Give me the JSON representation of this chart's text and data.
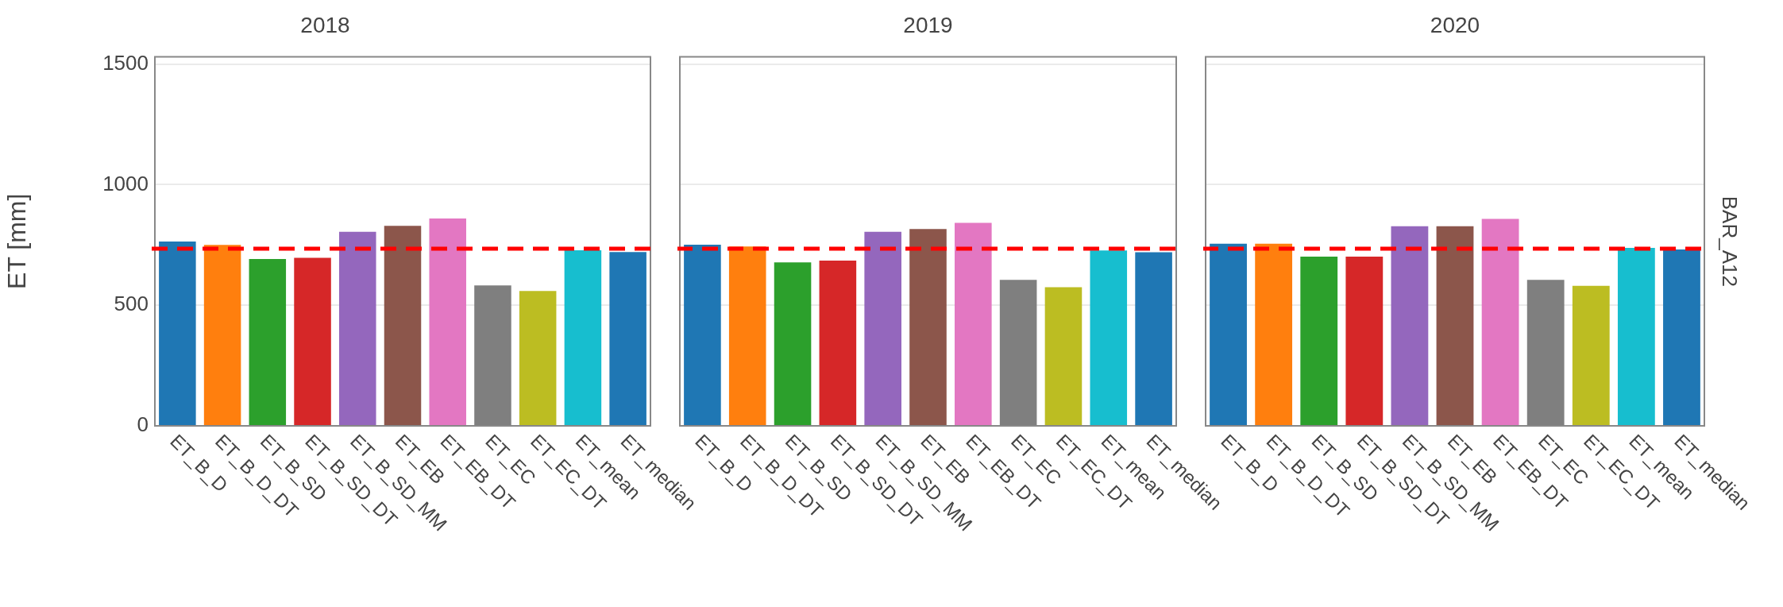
{
  "chart_data": [
    {
      "type": "bar",
      "title": "2018",
      "ylabel": "ET [mm]",
      "categories": [
        "ET_B_D",
        "ET_B_D_DT",
        "ET_B_SD",
        "ET_B_SD_DT",
        "ET_B_SD_MM",
        "ET_EB",
        "ET_EB_DT",
        "ET_EC",
        "ET_EC_DT",
        "ET_mean",
        "ET_median"
      ],
      "values": [
        764,
        750,
        692,
        697,
        805,
        829,
        860,
        582,
        559,
        728,
        721
      ],
      "colors": [
        "#1f77b4",
        "#ff7f0e",
        "#2ca02c",
        "#d62728",
        "#9467bd",
        "#8c564b",
        "#e377c2",
        "#7f7f7f",
        "#bcbd22",
        "#17becf",
        "#1f77b4"
      ],
      "ylim": [
        0,
        1530
      ],
      "yticks": [
        0,
        500,
        1000,
        1500
      ],
      "grid": "y",
      "legend": false,
      "ref_lines": [
        {
          "axis": "y",
          "value": 735,
          "color": "#ff0000",
          "line_style": "dashed"
        }
      ]
    },
    {
      "type": "bar",
      "title": "2019",
      "categories": [
        "ET_B_D",
        "ET_B_D_DT",
        "ET_B_SD",
        "ET_B_SD_DT",
        "ET_B_SD_MM",
        "ET_EB",
        "ET_EB_DT",
        "ET_EC",
        "ET_EC_DT",
        "ET_mean",
        "ET_median"
      ],
      "values": [
        751,
        744,
        678,
        685,
        805,
        816,
        842,
        605,
        575,
        727,
        720
      ],
      "colors": [
        "#1f77b4",
        "#ff7f0e",
        "#2ca02c",
        "#d62728",
        "#9467bd",
        "#8c564b",
        "#e377c2",
        "#7f7f7f",
        "#bcbd22",
        "#17becf",
        "#1f77b4"
      ],
      "ylim": [
        0,
        1530
      ],
      "yticks": [
        0,
        500,
        1000,
        1500
      ],
      "grid": "y",
      "legend": false,
      "tick_labels": "x",
      "ref_lines": [
        {
          "axis": "y",
          "value": 735,
          "color": "#ff0000",
          "line_style": "dashed"
        }
      ]
    },
    {
      "type": "bar",
      "title": "2020",
      "categories": [
        "ET_B_D",
        "ET_B_D_DT",
        "ET_B_SD",
        "ET_B_SD_DT",
        "ET_B_SD_MM",
        "ET_EB",
        "ET_EB_DT",
        "ET_EC",
        "ET_EC_DT",
        "ET_mean",
        "ET_median"
      ],
      "values": [
        755,
        755,
        702,
        702,
        828,
        828,
        858,
        605,
        581,
        738,
        731
      ],
      "colors": [
        "#1f77b4",
        "#ff7f0e",
        "#2ca02c",
        "#d62728",
        "#9467bd",
        "#8c564b",
        "#e377c2",
        "#7f7f7f",
        "#bcbd22",
        "#17becf",
        "#1f77b4"
      ],
      "ylim": [
        0,
        1530
      ],
      "yticks": [
        0,
        500,
        1000,
        1500
      ],
      "grid": "y",
      "legend": false,
      "tick_labels": "x",
      "ref_lines": [
        {
          "axis": "y",
          "value": 735,
          "color": "#ff0000",
          "line_style": "dashed"
        }
      ],
      "annotations": [
        "BAR_A12"
      ]
    }
  ]
}
